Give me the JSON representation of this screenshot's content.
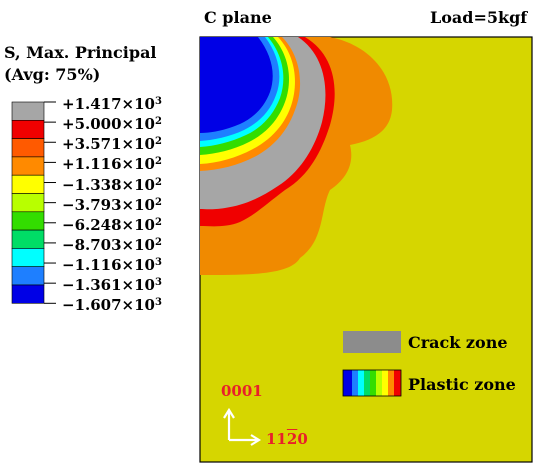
{
  "header": {
    "plane_label": "C plane",
    "load_label": "Load=5kgf"
  },
  "legend": {
    "title_line1": "S, Max. Principal",
    "title_line2": "(Avg: 75%)",
    "entries": [
      {
        "mantissa": "+1.417",
        "exp": "3"
      },
      {
        "mantissa": "+5.000",
        "exp": "2"
      },
      {
        "mantissa": "+3.571",
        "exp": "2"
      },
      {
        "mantissa": "+1.116",
        "exp": "2"
      },
      {
        "mantissa": "−1.338",
        "exp": "2"
      },
      {
        "mantissa": "−3.793",
        "exp": "2"
      },
      {
        "mantissa": "−6.248",
        "exp": "2"
      },
      {
        "mantissa": "−8.703",
        "exp": "2"
      },
      {
        "mantissa": "−1.116",
        "exp": "3"
      },
      {
        "mantissa": "−1.361",
        "exp": "3"
      },
      {
        "mantissa": "−1.607",
        "exp": "3"
      }
    ],
    "bands": [
      "#a6a6a6",
      "#f00000",
      "#ff5a00",
      "#ff8a00",
      "#ffff00",
      "#b8ff00",
      "#33dd00",
      "#00dd66",
      "#00ffff",
      "#1e7fff",
      "#0000e6"
    ]
  },
  "zones": {
    "crack_label": "Crack zone",
    "plastic_label": "Plastic zone",
    "crack_color": "#8c8c8c"
  },
  "axes": {
    "vertical_label": "0001",
    "horizontal_prefix": "11",
    "horizontal_overbar": "2",
    "horizontal_suffix": "0",
    "label_color": "#e8202a"
  },
  "plot": {
    "background_color": "#d6d600"
  }
}
